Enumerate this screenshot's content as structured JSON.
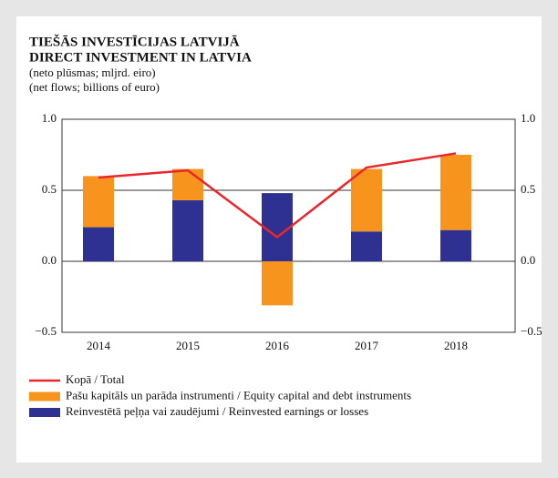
{
  "chart_data": {
    "type": "bar",
    "stacked": true,
    "title": [
      "TIEŠĀS INVESTĪCIJAS LATVIJĀ",
      "DIRECT INVESTMENT IN LATVIA"
    ],
    "subtitle": [
      "(neto plūsmas; mljrd. eiro)",
      "(net flows; billions of euro)"
    ],
    "categories": [
      "2014",
      "2015",
      "2016",
      "2017",
      "2018"
    ],
    "series": [
      {
        "name": "Kopā / Total",
        "type": "line",
        "color": "#e8262b",
        "values": [
          0.59,
          0.64,
          0.17,
          0.66,
          0.76
        ]
      },
      {
        "name": "Pašu kapitāls un parāda instrumenti / Equity capital and debt instruments",
        "type": "bar",
        "color": "#f7941d",
        "values": [
          0.36,
          0.22,
          -0.31,
          0.44,
          0.53
        ]
      },
      {
        "name": "Reinvestētā peļņa vai zaudējumi / Reinvested earnings or losses",
        "type": "bar",
        "color": "#2e3192",
        "values": [
          0.24,
          0.43,
          0.48,
          0.21,
          0.22
        ]
      }
    ],
    "ylim": [
      -0.5,
      1.0
    ],
    "yticks": [
      {
        "value": 1.0,
        "label": "1.0"
      },
      {
        "value": 0.5,
        "label": "0.5"
      },
      {
        "value": 0.0,
        "label": "0.0"
      },
      {
        "value": -0.5,
        "label": "−0.5"
      }
    ],
    "y2lim": [
      -0.5,
      1.0
    ],
    "y2ticks": [
      {
        "value": 1.0,
        "label": "1.0"
      },
      {
        "value": 0.5,
        "label": "0.5"
      },
      {
        "value": 0.0,
        "label": "0.0"
      },
      {
        "value": -0.5,
        "label": "−0.5"
      }
    ],
    "grid": true,
    "legend": "bottom"
  }
}
